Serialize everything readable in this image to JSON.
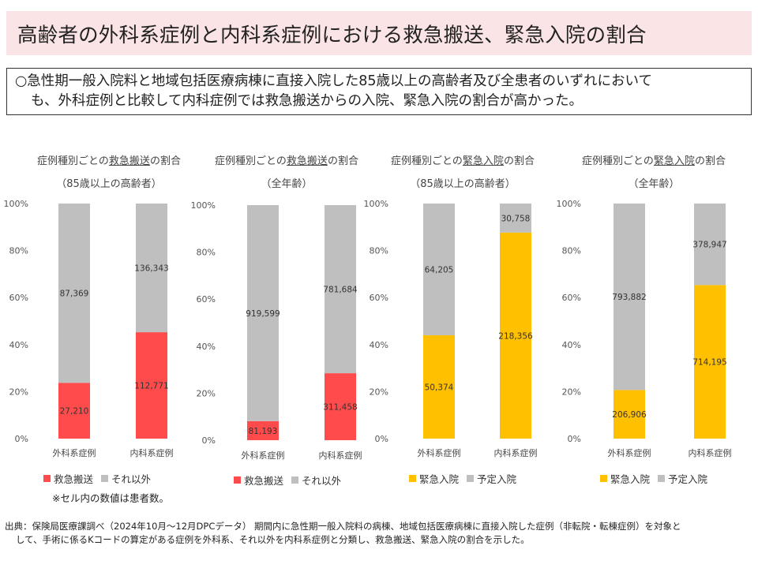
{
  "title": "高齢者の外科系症例と内科系症例における救急搬送、緊急入院の割合",
  "summary": {
    "line1": "○急性期一般入院料と地域包括医療病棟に直接入院した85歳以上の高齢者及び全患者のいずれにおいて",
    "line2": "も、外科症例と比較して内科症例では救急搬送からの入院、緊急入院の割合が高かった。"
  },
  "colors": {
    "red": "#ff4b4b",
    "gold": "#ffc000",
    "gray": "#bfbfbf"
  },
  "chart_data": [
    {
      "type": "bar",
      "stacked": "percent",
      "title_pre": "症例種別ごとの",
      "title_u": "救急搬送",
      "title_post": "の割合",
      "subtitle": "（85歳以上の高齢者）",
      "categories": [
        "外科系症例",
        "内科系症例"
      ],
      "series": [
        {
          "name": "救急搬送",
          "values": [
            27210,
            112771
          ],
          "color": "red"
        },
        {
          "name": "それ以外",
          "values": [
            87369,
            136343
          ],
          "color": "gray"
        }
      ],
      "ylim": [
        0,
        100
      ],
      "yticks": [
        "0%",
        "20%",
        "40%",
        "60%",
        "80%",
        "100%"
      ],
      "labels": [
        [
          "27,210",
          "87,369"
        ],
        [
          "112,771",
          "136,343"
        ]
      ]
    },
    {
      "type": "bar",
      "stacked": "percent",
      "title_pre": "症例種別ごとの",
      "title_u": "救急搬送",
      "title_post": "の割合",
      "subtitle": "（全年齢）",
      "categories": [
        "外科系症例",
        "内科系症例"
      ],
      "series": [
        {
          "name": "救急搬送",
          "values": [
            81193,
            311458
          ],
          "color": "red"
        },
        {
          "name": "それ以外",
          "values": [
            919599,
            781684
          ],
          "color": "gray"
        }
      ],
      "ylim": [
        0,
        100
      ],
      "yticks": [
        "0%",
        "20%",
        "40%",
        "60%",
        "80%",
        "100%"
      ],
      "labels": [
        [
          "81,193",
          "919,599"
        ],
        [
          "311,458",
          "781,684"
        ]
      ]
    },
    {
      "type": "bar",
      "stacked": "percent",
      "title_pre": "症例種別ごとの",
      "title_u": "緊急入院",
      "title_post": "の割合",
      "subtitle": "（85歳以上の高齢者）",
      "categories": [
        "外科系症例",
        "内科系症例"
      ],
      "series": [
        {
          "name": "緊急入院",
          "values": [
            50374,
            218356
          ],
          "color": "gold"
        },
        {
          "name": "予定入院",
          "values": [
            64205,
            30758
          ],
          "color": "gray"
        }
      ],
      "ylim": [
        0,
        100
      ],
      "yticks": [
        "0%",
        "20%",
        "40%",
        "60%",
        "80%",
        "100%"
      ],
      "labels": [
        [
          "50,374",
          "64,205"
        ],
        [
          "218,356",
          "30,758"
        ]
      ]
    },
    {
      "type": "bar",
      "stacked": "percent",
      "title_pre": "症例種別ごとの",
      "title_u": "緊急入院",
      "title_post": "の割合",
      "subtitle": "（全年齢）",
      "categories": [
        "外科系症例",
        "内科系症例"
      ],
      "series": [
        {
          "name": "緊急入院",
          "values": [
            206906,
            714195
          ],
          "color": "gold"
        },
        {
          "name": "予定入院",
          "values": [
            793882,
            378947
          ],
          "color": "gray"
        }
      ],
      "ylim": [
        0,
        100
      ],
      "yticks": [
        "0%",
        "20%",
        "40%",
        "60%",
        "80%",
        "100%"
      ],
      "labels": [
        [
          "206,906",
          "793,882"
        ],
        [
          "714,195",
          "378,947"
        ]
      ]
    }
  ],
  "note": "※セル内の数値は患者数。",
  "source": {
    "line1": "出典：保険局医療課調べ（2024年10月～12月DPCデータ） 期間内に急性期一般入院料の病棟、地域包括医療病棟に直接入院した症例（非転院・転棟症例）を対象と",
    "line2": "して、手術に係るKコードの算定がある症例を外科系、それ以外を内科系症例と分類し、救急搬送、緊急入院の割合を示した。"
  }
}
